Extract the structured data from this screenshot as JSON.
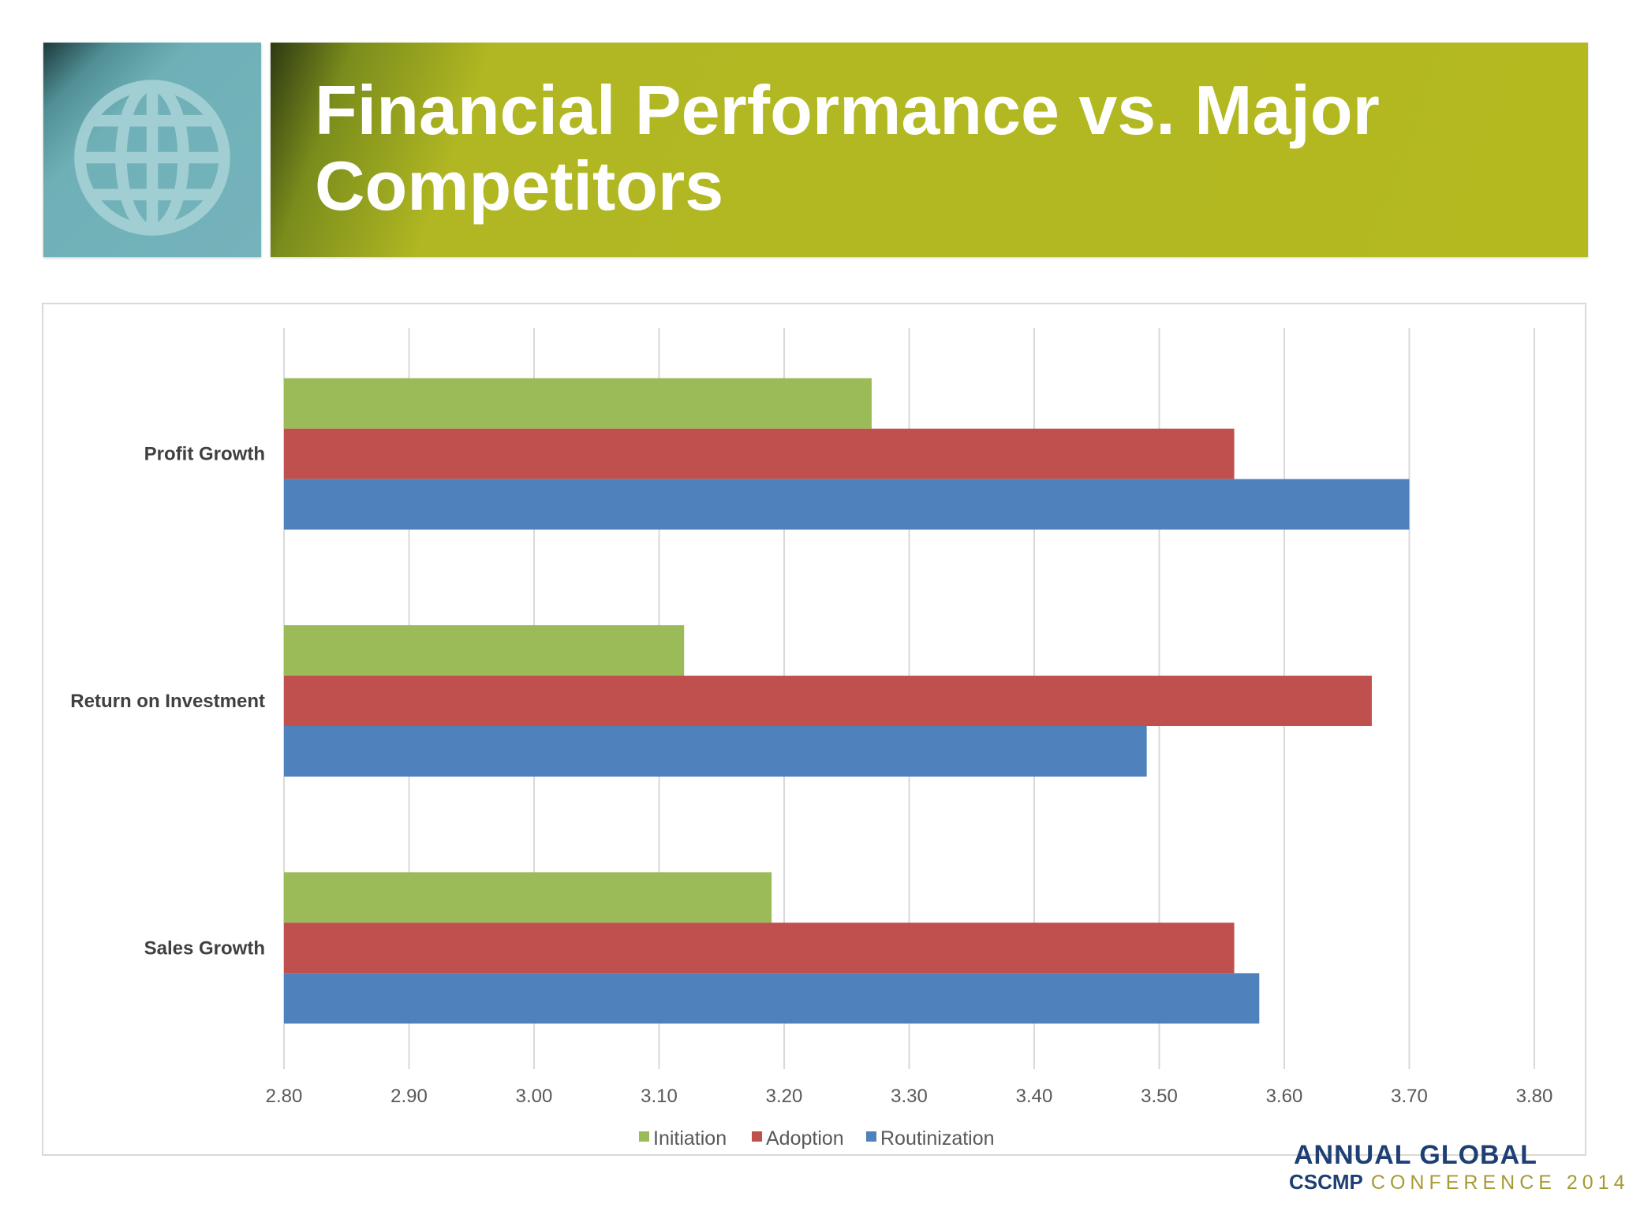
{
  "title": "Financial Performance vs. Major Competitors",
  "header_icon": "globe-icon",
  "colors": {
    "title_bar": "#b4b920",
    "icon_box": "#75b3bb",
    "initiation": "#9bbb59",
    "adoption": "#c0504d",
    "routinization": "#4f81bd"
  },
  "chart_data": {
    "type": "bar",
    "orientation": "horizontal",
    "categories": [
      "Profit Growth",
      "Return on Investment",
      "Sales Growth"
    ],
    "series": [
      {
        "name": "Initiation",
        "color": "#9bbb59",
        "values": [
          3.27,
          3.12,
          3.19
        ]
      },
      {
        "name": "Adoption",
        "color": "#c0504d",
        "values": [
          3.56,
          3.67,
          3.56
        ]
      },
      {
        "name": "Routinization",
        "color": "#4f81bd",
        "values": [
          3.7,
          3.49,
          3.58
        ]
      }
    ],
    "xlim": [
      2.8,
      3.8
    ],
    "x_ticks": [
      "2.80",
      "2.90",
      "3.00",
      "3.10",
      "3.20",
      "3.30",
      "3.40",
      "3.50",
      "3.60",
      "3.70",
      "3.80"
    ],
    "xlabel": "",
    "ylabel": "",
    "grid": "vertical",
    "legend_position": "bottom"
  },
  "branding": {
    "top_text": "ANNUAL GLOBAL",
    "org": "CSCMP",
    "event": "CONFERENCE 2014"
  }
}
